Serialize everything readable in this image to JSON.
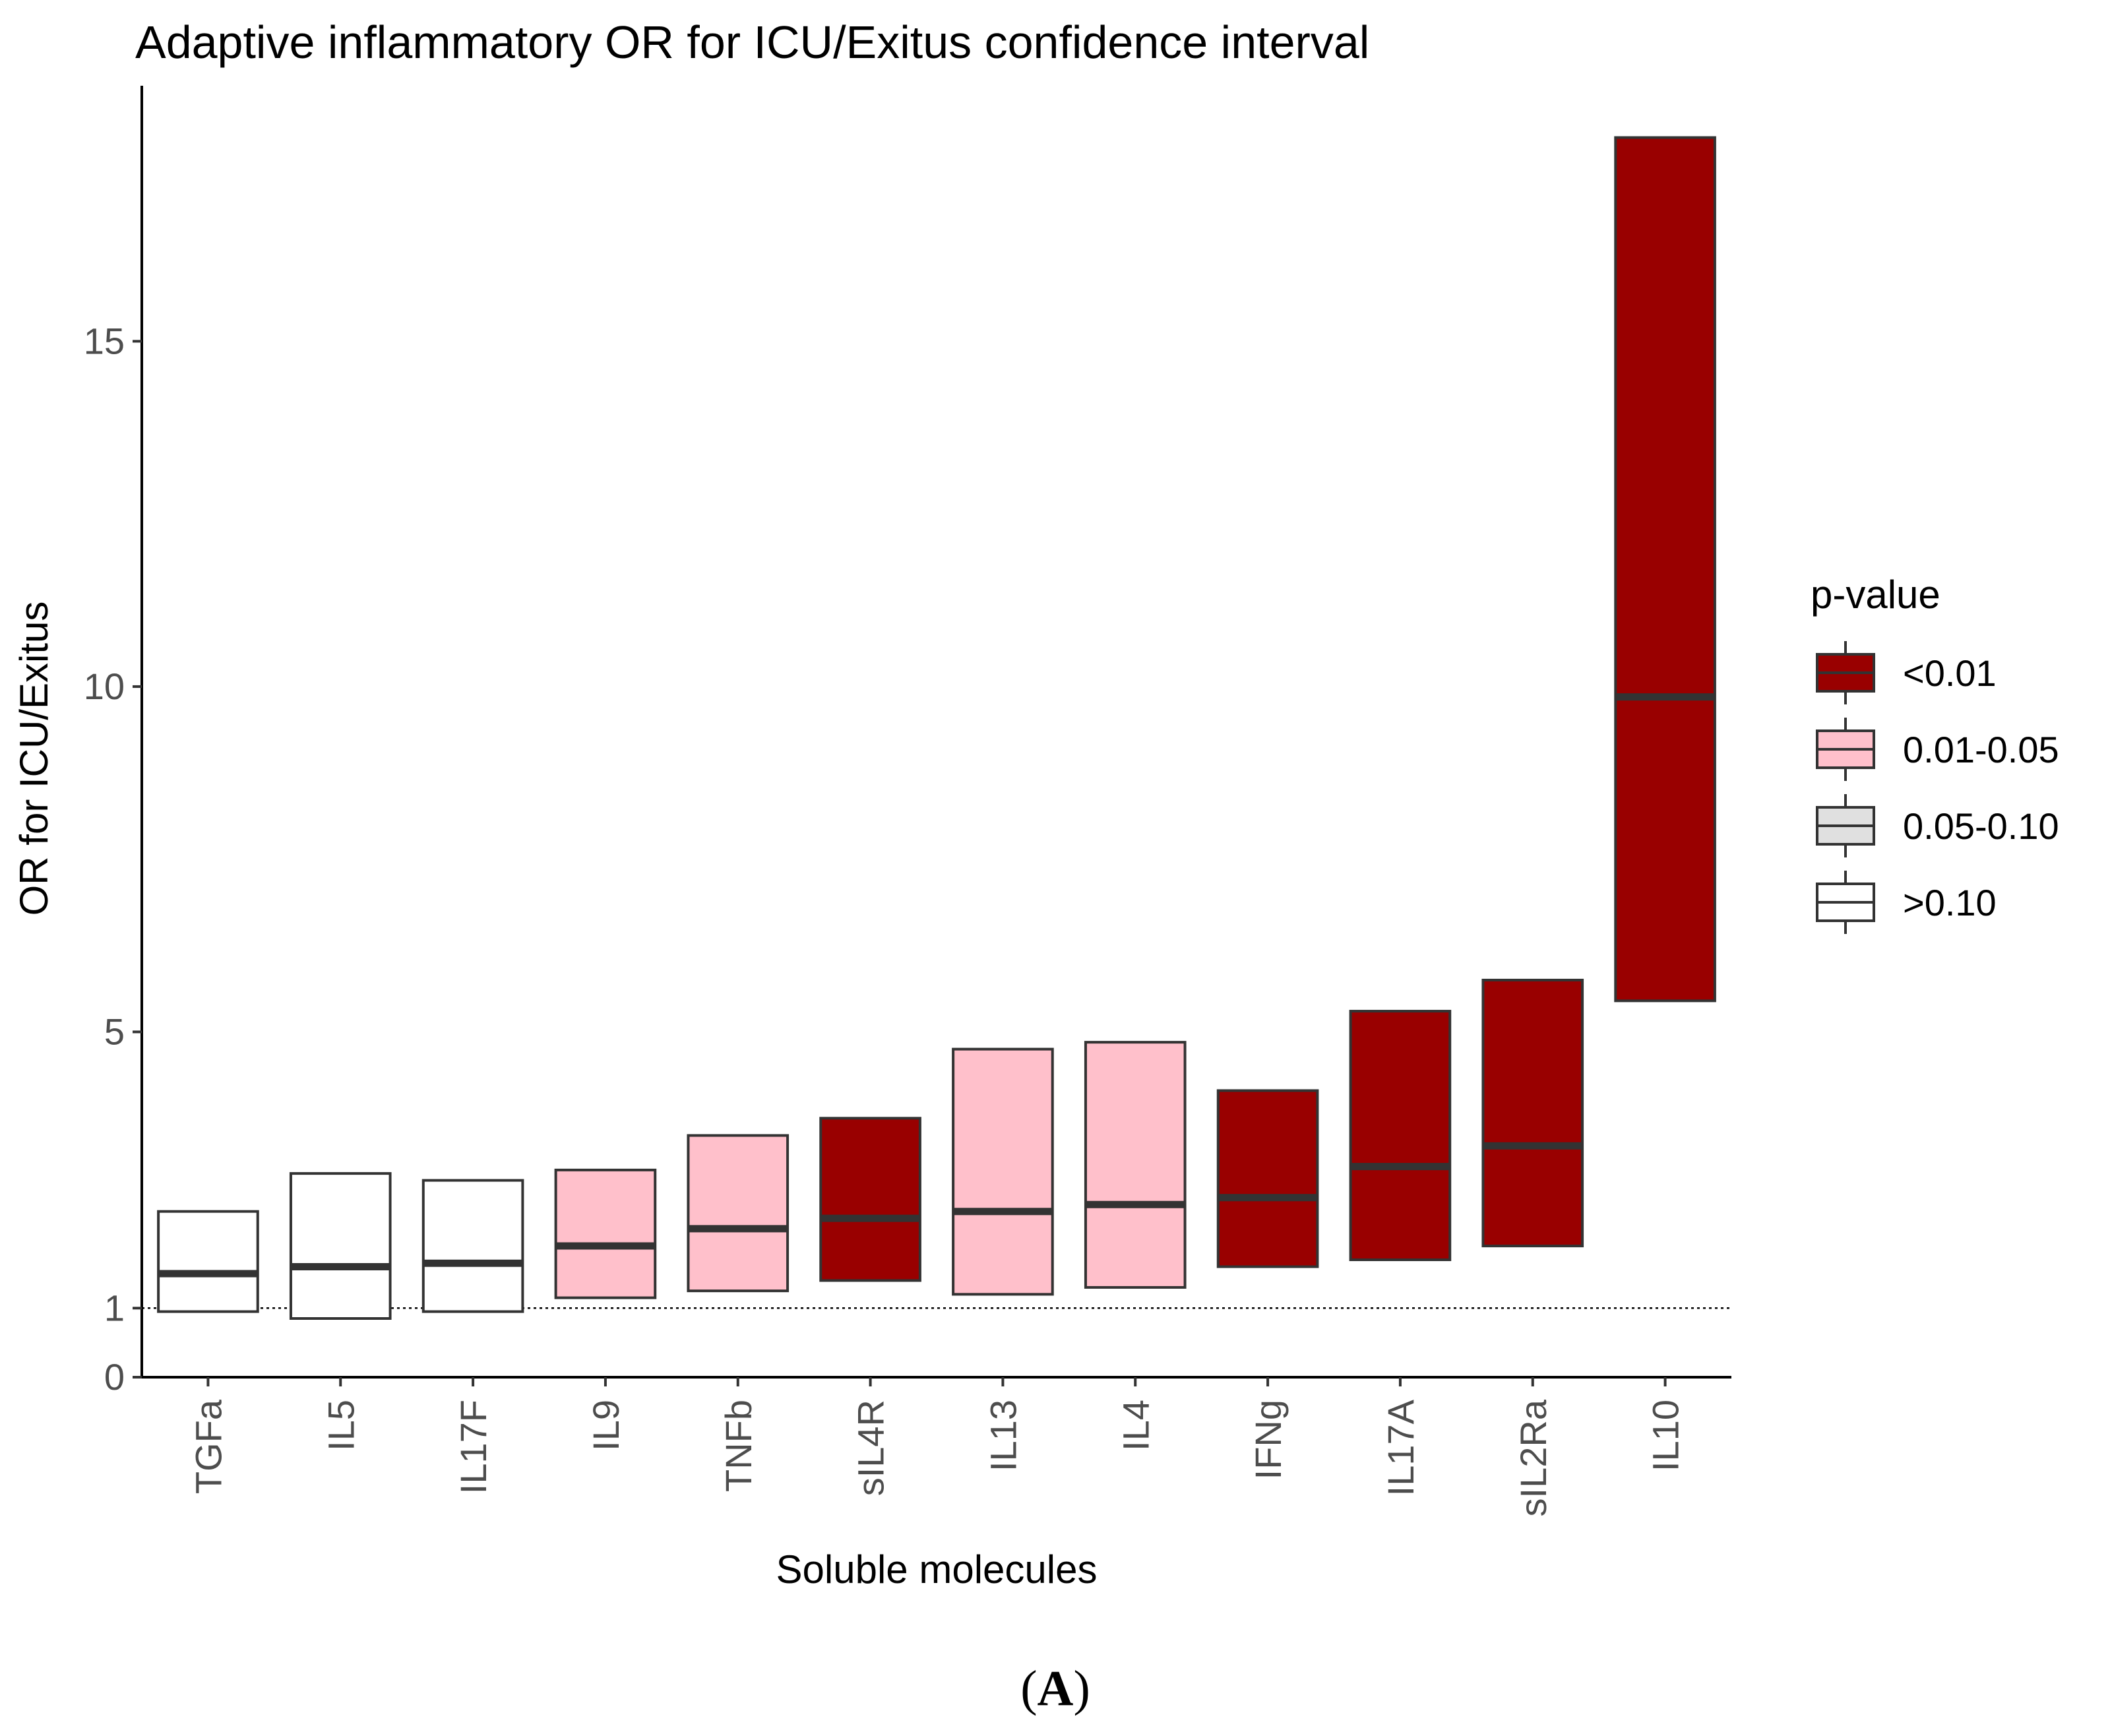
{
  "chart_data": {
    "type": "crossbar",
    "title": "Adaptive inflammatory OR for ICU/Exitus confidence interval",
    "xlabel": "Soluble molecules",
    "ylabel": "OR for ICU/Exitus",
    "ylim": [
      0,
      18.7
    ],
    "yticks": [
      0,
      1,
      5,
      10,
      15
    ],
    "reference_line": 1,
    "categories": [
      "TGFa",
      "IL5",
      "IL17F",
      "IL9",
      "TNFb",
      "sIL4R",
      "IL13",
      "IL4",
      "IFNg",
      "IL17A",
      "sIL2Ra",
      "IL10"
    ],
    "or": [
      1.5,
      1.6,
      1.65,
      1.9,
      2.15,
      2.3,
      2.4,
      2.5,
      2.6,
      3.05,
      3.35,
      9.85
    ],
    "ci_lower": [
      0.95,
      0.85,
      0.95,
      1.15,
      1.25,
      1.4,
      1.2,
      1.3,
      1.6,
      1.7,
      1.9,
      5.45
    ],
    "ci_upper": [
      2.4,
      2.95,
      2.85,
      3.0,
      3.5,
      3.75,
      4.75,
      4.85,
      4.15,
      5.3,
      5.75,
      17.95
    ],
    "p_group": [
      "gt0.10",
      "gt0.10",
      "gt0.10",
      "p005",
      "p005",
      "p001",
      "p005",
      "p005",
      "p001",
      "p001",
      "p001",
      "p001"
    ],
    "legend": {
      "title": "p-value",
      "position": "right",
      "items": [
        {
          "key": "p001",
          "label": "<0.01",
          "color": "#990000"
        },
        {
          "key": "p005",
          "label": "0.01-0.05",
          "color": "#ffc0cb"
        },
        {
          "key": "p010",
          "label": "0.05-0.10",
          "color": "#e0e0e0"
        },
        {
          "key": "gt0.10",
          "label": ">0.10",
          "color": "#ffffff"
        }
      ]
    },
    "border_color": "#333333"
  },
  "caption": {
    "open": "(",
    "letter": "A",
    "close": ")"
  }
}
